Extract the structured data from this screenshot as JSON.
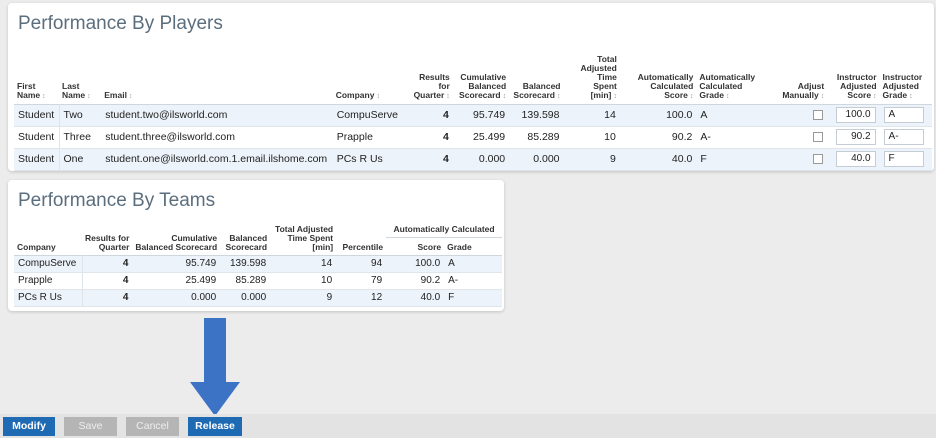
{
  "players": {
    "title": "Performance By Players",
    "columns": {
      "first_name": [
        "First",
        "Name"
      ],
      "last_name": [
        "Last",
        "Name"
      ],
      "email": "Email",
      "company": "Company",
      "results_for_quarter": [
        "Results",
        "for",
        "Quarter"
      ],
      "cumulative_balanced_scorecard": [
        "Cumulative",
        "Balanced",
        "Scorecard"
      ],
      "balanced_scorecard": [
        "Balanced",
        "Scorecard"
      ],
      "total_adjusted_time_spent": [
        "Total",
        "Adjusted",
        "Time",
        "Spent",
        "[min]"
      ],
      "auto_calc_score": [
        "Automatically",
        "Calculated",
        "Score"
      ],
      "auto_calc_grade": [
        "Automatically",
        "Calculated",
        "Grade"
      ],
      "adjust_manually": [
        "Adjust",
        "Manually"
      ],
      "instructor_adjusted_score": [
        "Instructor",
        "Adjusted",
        "Score"
      ],
      "instructor_adjusted_grade": [
        "Instructor",
        "Adjusted",
        "Grade"
      ]
    },
    "sort_glyph": "↕",
    "rows": [
      {
        "first": "Student",
        "last": "Two",
        "email": "student.two@ilsworld.com",
        "company": "CompuServe",
        "results": "4",
        "cumulative": "95.749",
        "balanced": "139.598",
        "time": "14",
        "score": "100.0",
        "grade": "A",
        "adjust": false,
        "inst_score": "100.0",
        "inst_grade": "A"
      },
      {
        "first": "Student",
        "last": "Three",
        "email": "student.three@ilsworld.com",
        "company": "Prapple",
        "results": "4",
        "cumulative": "25.499",
        "balanced": "85.289",
        "time": "10",
        "score": "90.2",
        "grade": "A-",
        "adjust": false,
        "inst_score": "90.2",
        "inst_grade": "A-"
      },
      {
        "first": "Student",
        "last": "One",
        "email": "student.one@ilsworld.com.1.email.ilshome.com",
        "company": "PCs R Us",
        "results": "4",
        "cumulative": "0.000",
        "balanced": "0.000",
        "time": "9",
        "score": "40.0",
        "grade": "F",
        "adjust": false,
        "inst_score": "40.0",
        "inst_grade": "F"
      }
    ]
  },
  "teams": {
    "title": "Performance By Teams",
    "columns": {
      "company": "Company",
      "results_for_quarter": [
        "Results for",
        "Quarter"
      ],
      "cumulative_balanced_scorecard": [
        "Cumulative",
        "Balanced Scorecard"
      ],
      "balanced_scorecard": [
        "Balanced",
        "Scorecard"
      ],
      "total_adjusted_time_spent": [
        "Total Adjusted",
        "Time Spent",
        "[min]"
      ],
      "percentile": "Percentile",
      "auto_group": "Automatically Calculated",
      "score": "Score",
      "grade": "Grade"
    },
    "rows": [
      {
        "company": "CompuServe",
        "results": "4",
        "cumulative": "95.749",
        "balanced": "139.598",
        "time": "14",
        "percentile": "94",
        "score": "100.0",
        "grade": "A"
      },
      {
        "company": "Prapple",
        "results": "4",
        "cumulative": "25.499",
        "balanced": "85.289",
        "time": "10",
        "percentile": "79",
        "score": "90.2",
        "grade": "A-"
      },
      {
        "company": "PCs R Us",
        "results": "4",
        "cumulative": "0.000",
        "balanced": "0.000",
        "time": "9",
        "percentile": "12",
        "score": "40.0",
        "grade": "F"
      }
    ]
  },
  "annotation": {
    "arrow_icon": "down-arrow-icon",
    "arrow_color": "#3d73c4"
  },
  "footer": {
    "modify_label": "Modify",
    "save_label": "Save",
    "cancel_label": "Cancel",
    "release_label": "Release",
    "primary_color": "#1f6bb3",
    "disabled_color": "#b5b5b5"
  }
}
